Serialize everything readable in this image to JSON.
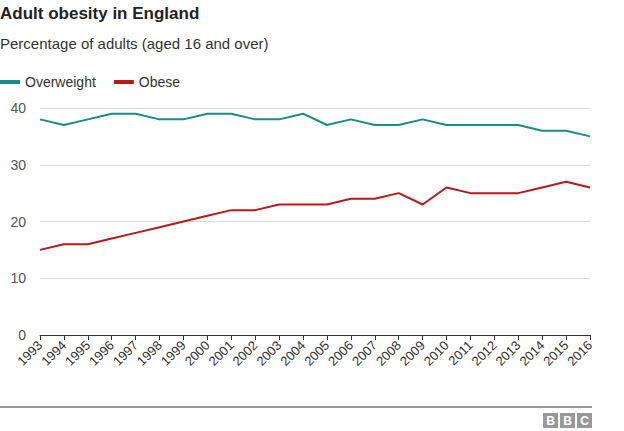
{
  "chart_data": {
    "type": "line",
    "title": "Adult obesity in England",
    "subtitle": "Percentage of adults (aged 16 and over)",
    "annotations": [
      "BBC"
    ],
    "categories": [
      "1993",
      "1994",
      "1995",
      "1996",
      "1997",
      "1998",
      "1999",
      "2000",
      "2001",
      "2002",
      "2003",
      "2004",
      "2005",
      "2006",
      "2007",
      "2008",
      "2009",
      "2010",
      "2011",
      "2012",
      "2013",
      "2014",
      "2015",
      "2016"
    ],
    "series": [
      {
        "name": "Overweight",
        "color": "#1b8a8c",
        "values": [
          38,
          37,
          38,
          39,
          39,
          38,
          38,
          39,
          39,
          38,
          38,
          39,
          37,
          38,
          37,
          37,
          38,
          37,
          37,
          37,
          37,
          36,
          36,
          35
        ]
      },
      {
        "name": "Obese",
        "color": "#bb1919",
        "values": [
          15,
          16,
          16,
          17,
          18,
          19,
          20,
          21,
          22,
          22,
          23,
          23,
          23,
          24,
          24,
          25,
          23,
          26,
          25,
          25,
          25,
          26,
          27,
          26
        ]
      }
    ],
    "ylim": [
      0,
      40
    ],
    "yticks": [
      0,
      10,
      20,
      30,
      40
    ],
    "grid": true,
    "legend": "top-left"
  }
}
